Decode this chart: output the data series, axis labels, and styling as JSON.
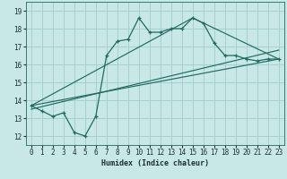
{
  "xlabel": "Humidex (Indice chaleur)",
  "background_color": "#c8e8e8",
  "grid_color": "#a0cccc",
  "line_color": "#1e6b60",
  "xlim": [
    -0.5,
    23.5
  ],
  "ylim": [
    11.5,
    19.5
  ],
  "yticks": [
    12,
    13,
    14,
    15,
    16,
    17,
    18,
    19
  ],
  "xticks": [
    0,
    1,
    2,
    3,
    4,
    5,
    6,
    7,
    8,
    9,
    10,
    11,
    12,
    13,
    14,
    15,
    16,
    17,
    18,
    19,
    20,
    21,
    22,
    23
  ],
  "line1_x": [
    0,
    1,
    2,
    3,
    4,
    5,
    6,
    7,
    8,
    9,
    10,
    11,
    12,
    13,
    14,
    15,
    16,
    17,
    18,
    19,
    20,
    21,
    22,
    23
  ],
  "line1_y": [
    13.7,
    13.4,
    13.1,
    13.3,
    12.2,
    12.0,
    13.1,
    16.5,
    17.3,
    17.4,
    18.6,
    17.8,
    17.8,
    18.0,
    18.0,
    18.6,
    18.3,
    17.2,
    16.5,
    16.5,
    16.3,
    16.2,
    16.3,
    16.3
  ],
  "line2_x": [
    0,
    23
  ],
  "line2_y": [
    13.7,
    16.3
  ],
  "line3_x": [
    0,
    23
  ],
  "line3_y": [
    13.5,
    16.8
  ],
  "line4_x": [
    0,
    15,
    23
  ],
  "line4_y": [
    13.7,
    18.6,
    16.3
  ]
}
